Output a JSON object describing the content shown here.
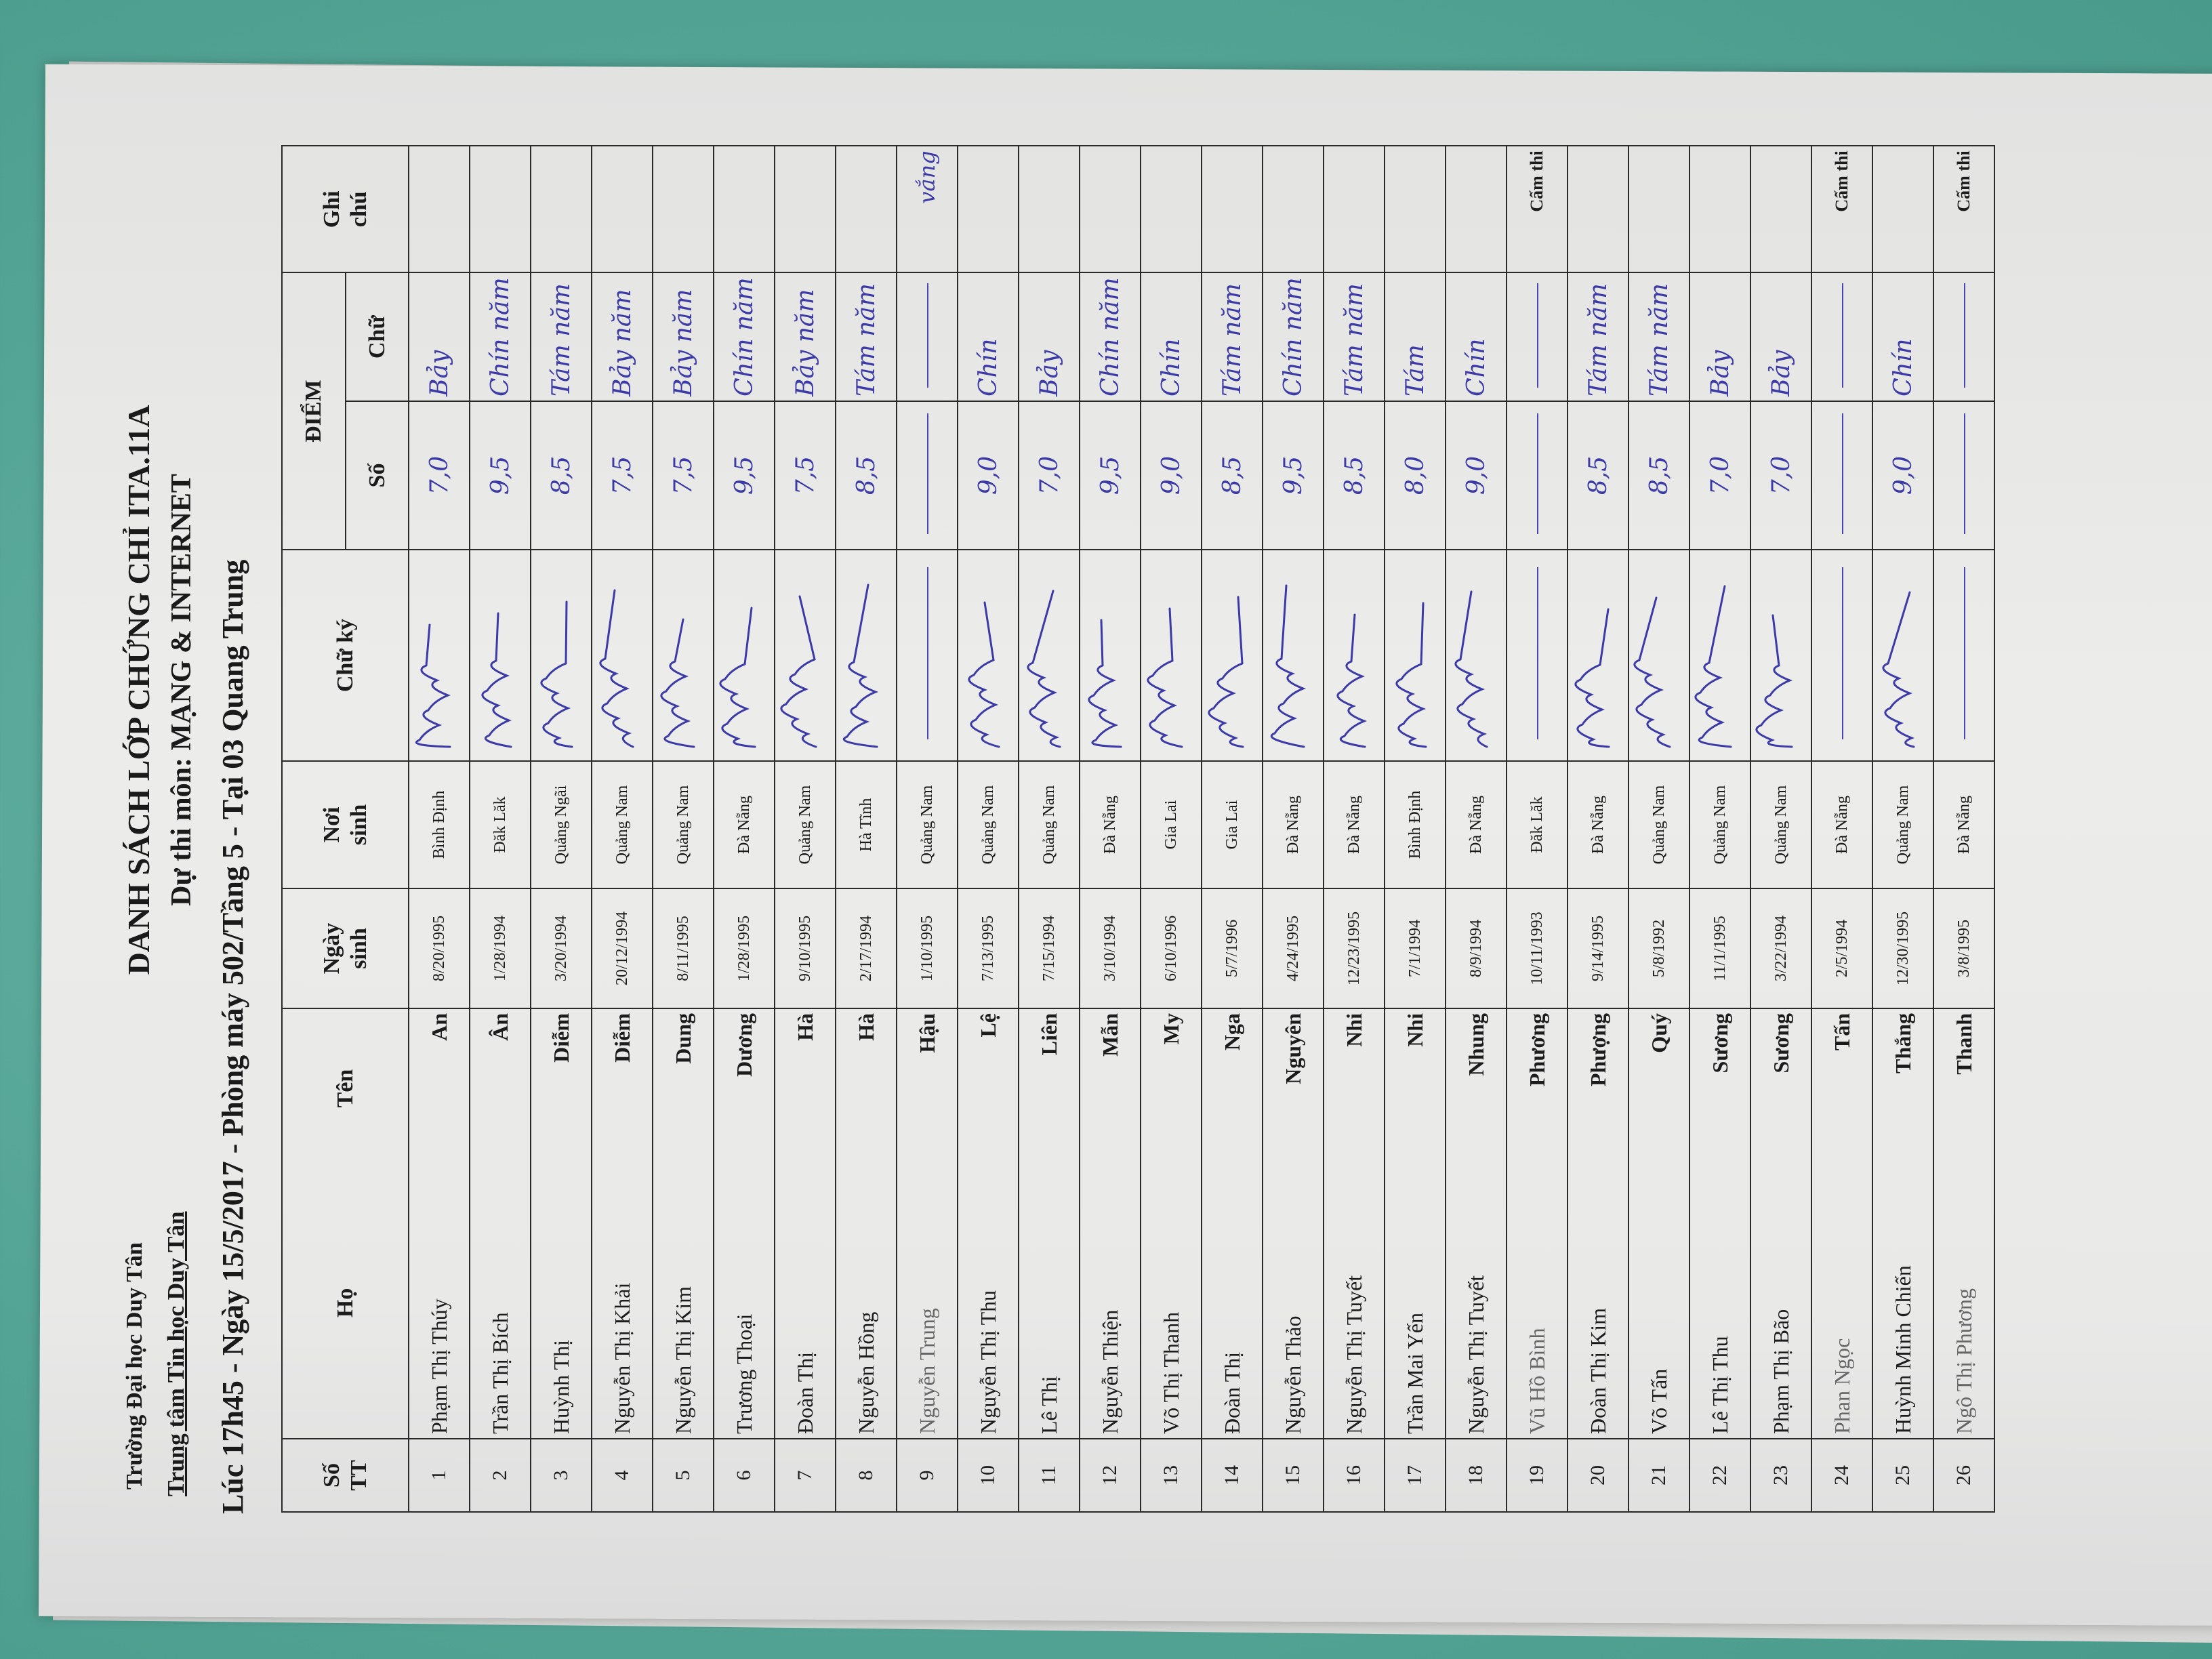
{
  "header": {
    "school": "Trường Đại học Duy Tân",
    "center": "Trung tâm Tin học Duy Tân",
    "title": "DANH SÁCH LỚP CHỨNG CHỈ ITA.11A",
    "subject": "Dự thi môn: MẠNG & INTERNET",
    "session": "Lúc 17h45 - Ngày 15/5/2017 - Phòng máy 502/Tầng 5 - Tại 03 Quang Trung"
  },
  "columns": {
    "stt": "Số TT",
    "ho": "Họ",
    "ten": "Tên",
    "dob": "Ngày sinh",
    "pob": "Nơi sinh",
    "signature": "Chữ ký",
    "score": "ĐIỂM",
    "score_num": "Số",
    "score_word": "Chữ",
    "note": "Ghi chú"
  },
  "colors": {
    "background": "#55a596",
    "paper": "#ececea",
    "ink": "#3b3aa6"
  },
  "rows": [
    {
      "stt": "1",
      "ho": "Phạm Thị Thúy",
      "ten": "An",
      "dob": "8/20/1995",
      "pob": "Bình Định",
      "signed": true,
      "so": "7,0",
      "chu": "Bảy",
      "note": ""
    },
    {
      "stt": "2",
      "ho": "Trần Thị Bích",
      "ten": "Ân",
      "dob": "1/28/1994",
      "pob": "Đăk Lăk",
      "signed": true,
      "so": "9,5",
      "chu": "Chín năm",
      "note": ""
    },
    {
      "stt": "3",
      "ho": "Huỳnh Thị",
      "ten": "Diễm",
      "dob": "3/20/1994",
      "pob": "Quảng Ngãi",
      "signed": true,
      "so": "8,5",
      "chu": "Tám năm",
      "note": ""
    },
    {
      "stt": "4",
      "ho": "Nguyễn Thị Khải",
      "ten": "Diễm",
      "dob": "20/12/1994",
      "pob": "Quảng Nam",
      "signed": true,
      "so": "7,5",
      "chu": "Bảy năm",
      "note": ""
    },
    {
      "stt": "5",
      "ho": "Nguyễn Thị Kim",
      "ten": "Dung",
      "dob": "8/11/1995",
      "pob": "Quảng Nam",
      "signed": true,
      "so": "7,5",
      "chu": "Bảy năm",
      "note": ""
    },
    {
      "stt": "6",
      "ho": "Trương Thoại",
      "ten": "Dương",
      "dob": "1/28/1995",
      "pob": "Đà Nẵng",
      "signed": true,
      "so": "9,5",
      "chu": "Chín năm",
      "note": ""
    },
    {
      "stt": "7",
      "ho": "Đoàn Thị",
      "ten": "Hà",
      "dob": "9/10/1995",
      "pob": "Quảng Nam",
      "signed": true,
      "so": "7,5",
      "chu": "Bảy năm",
      "note": ""
    },
    {
      "stt": "8",
      "ho": "Nguyễn Hồng",
      "ten": "Hà",
      "dob": "2/17/1994",
      "pob": "Hà Tĩnh",
      "signed": true,
      "so": "8,5",
      "chu": "Tám năm",
      "note": ""
    },
    {
      "stt": "9",
      "ho": "Nguyễn Trung",
      "ten": "Hậu",
      "dob": "1/10/1995",
      "pob": "Quảng Nam",
      "signed": false,
      "so": "",
      "chu": "",
      "note": "",
      "note_hw": "vắng"
    },
    {
      "stt": "10",
      "ho": "Nguyễn Thị Thu",
      "ten": "Lệ",
      "dob": "7/13/1995",
      "pob": "Quảng Nam",
      "signed": true,
      "so": "9,0",
      "chu": "Chín",
      "note": ""
    },
    {
      "stt": "11",
      "ho": "Lê Thị",
      "ten": "Liên",
      "dob": "7/15/1994",
      "pob": "Quảng Nam",
      "signed": true,
      "so": "7,0",
      "chu": "Bảy",
      "note": ""
    },
    {
      "stt": "12",
      "ho": "Nguyễn Thiện",
      "ten": "Mẫn",
      "dob": "3/10/1994",
      "pob": "Đà Nẵng",
      "signed": true,
      "so": "9,5",
      "chu": "Chín năm",
      "note": ""
    },
    {
      "stt": "13",
      "ho": "Võ Thị Thanh",
      "ten": "My",
      "dob": "6/10/1996",
      "pob": "Gia Lai",
      "signed": true,
      "so": "9,0",
      "chu": "Chín",
      "note": ""
    },
    {
      "stt": "14",
      "ho": "Đoàn Thị",
      "ten": "Nga",
      "dob": "5/7/1996",
      "pob": "Gia Lai",
      "signed": true,
      "so": "8,5",
      "chu": "Tám năm",
      "note": ""
    },
    {
      "stt": "15",
      "ho": "Nguyễn Thảo",
      "ten": "Nguyên",
      "dob": "4/24/1995",
      "pob": "Đà Nẵng",
      "signed": true,
      "so": "9,5",
      "chu": "Chín năm",
      "note": ""
    },
    {
      "stt": "16",
      "ho": "Nguyễn Thị Tuyết",
      "ten": "Nhi",
      "dob": "12/23/1995",
      "pob": "Đà Nẵng",
      "signed": true,
      "so": "8,5",
      "chu": "Tám năm",
      "note": ""
    },
    {
      "stt": "17",
      "ho": "Trần Mai Yến",
      "ten": "Nhi",
      "dob": "7/1/1994",
      "pob": "Bình Định",
      "signed": true,
      "so": "8,0",
      "chu": "Tám",
      "note": ""
    },
    {
      "stt": "18",
      "ho": "Nguyễn Thị Tuyết",
      "ten": "Nhung",
      "dob": "8/9/1994",
      "pob": "Đà Nẵng",
      "signed": true,
      "so": "9,0",
      "chu": "Chín",
      "note": ""
    },
    {
      "stt": "19",
      "ho": "Vũ Hồ Bình",
      "ten": "Phương",
      "dob": "10/11/1993",
      "pob": "Đăk Lăk",
      "signed": false,
      "so": "",
      "chu": "",
      "note": "Cấm thi"
    },
    {
      "stt": "20",
      "ho": "Đoàn Thị Kim",
      "ten": "Phượng",
      "dob": "9/14/1995",
      "pob": "Đà Nẵng",
      "signed": true,
      "so": "8,5",
      "chu": "Tám năm",
      "note": ""
    },
    {
      "stt": "21",
      "ho": "Võ Tấn",
      "ten": "Quý",
      "dob": "5/8/1992",
      "pob": "Quảng Nam",
      "signed": true,
      "so": "8,5",
      "chu": "Tám năm",
      "note": ""
    },
    {
      "stt": "22",
      "ho": "Lê Thị Thu",
      "ten": "Sương",
      "dob": "11/1/1995",
      "pob": "Quảng Nam",
      "signed": true,
      "so": "7,0",
      "chu": "Bảy",
      "note": ""
    },
    {
      "stt": "23",
      "ho": "Phạm Thị Bão",
      "ten": "Sương",
      "dob": "3/22/1994",
      "pob": "Quảng Nam",
      "signed": true,
      "so": "7,0",
      "chu": "Bảy",
      "note": ""
    },
    {
      "stt": "24",
      "ho": "Phan Ngọc",
      "ten": "Tấn",
      "dob": "2/5/1994",
      "pob": "Đà Nẵng",
      "signed": false,
      "so": "",
      "chu": "",
      "note": "Cấm thi"
    },
    {
      "stt": "25",
      "ho": "Huỳnh Minh Chiến",
      "ten": "Thắng",
      "dob": "12/30/1995",
      "pob": "Quảng Nam",
      "signed": true,
      "so": "9,0",
      "chu": "Chín",
      "note": ""
    },
    {
      "stt": "26",
      "ho": "Ngô Thị Phương",
      "ten": "Thanh",
      "dob": "3/8/1995",
      "pob": "Đà Nẵng",
      "signed": false,
      "so": "",
      "chu": "",
      "note": "Cấm thi"
    }
  ]
}
